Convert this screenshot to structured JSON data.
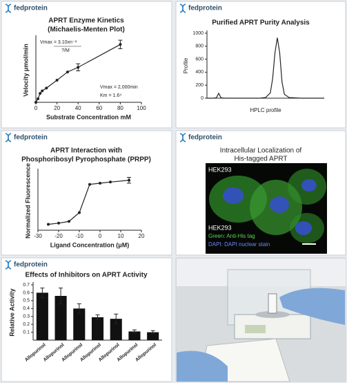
{
  "brand": "fedprotein",
  "chart_data": [
    {
      "type": "line",
      "title": [
        "APRT Enzyme Kinetics",
        "(Michaelis-Menten Plot)"
      ],
      "x": [
        0,
        2,
        4,
        6,
        10,
        20,
        30,
        40,
        80
      ],
      "values": [
        0,
        10,
        25,
        32,
        40,
        62,
        85,
        98,
        162
      ],
      "errors": [
        null,
        null,
        null,
        null,
        null,
        null,
        null,
        10,
        12
      ],
      "color": "#222222",
      "markers": true,
      "xlim": [
        0,
        100
      ],
      "xticks": [
        0,
        20,
        40,
        60,
        80,
        100
      ],
      "ylim": [
        0,
        180
      ],
      "xlabel": "Substrate Concentration mM",
      "ylabel": "Velocity μmol/min",
      "annotations": [
        "Vmax = 3.10xn⁻⁸",
        "?/M",
        "Vmax = 2,000min",
        "Km = 1.6⁴"
      ]
    },
    {
      "type": "line",
      "title": [
        "Purified APRT Purity Analysis"
      ],
      "x": [
        0,
        5,
        8,
        10,
        12,
        15,
        30,
        45,
        50,
        54,
        56,
        58,
        60,
        62,
        64,
        66,
        70,
        80,
        100
      ],
      "values": [
        0,
        0,
        5,
        75,
        5,
        0,
        0,
        0,
        10,
        80,
        300,
        700,
        930,
        700,
        250,
        60,
        10,
        0,
        0
      ],
      "color": "#222222",
      "markers": false,
      "xlim": [
        0,
        100
      ],
      "ylim": [
        0,
        1000
      ],
      "yticks": [
        0,
        200,
        400,
        600,
        800,
        1000
      ],
      "xlabel": "HPLC profile",
      "ylabel": "Profile"
    },
    {
      "type": "line",
      "title": [
        "APRT Interaction with",
        "Phosphoribosyl Pyrophosphate (PRPP)"
      ],
      "x": [
        -25,
        -20,
        -15,
        -10,
        -5,
        0,
        5,
        14
      ],
      "values": [
        0.1,
        0.12,
        0.15,
        0.3,
        0.78,
        0.8,
        0.82,
        0.85
      ],
      "errors": [
        null,
        null,
        null,
        null,
        null,
        null,
        null,
        0.05
      ],
      "color": "#222222",
      "markers": true,
      "xlim": [
        -30,
        20
      ],
      "xticks": [
        -30,
        -20,
        -10,
        0,
        10,
        20
      ],
      "ylim": [
        0,
        1
      ],
      "xlabel": "Ligand Concentration (μM)",
      "ylabel": "Normalized Fluorescence"
    },
    {
      "type": "bar",
      "title": [
        "Effects of Inhibitors on APRT Activity"
      ],
      "categories": [
        "Allopurinol",
        "Allopurinol",
        "Allopurinol",
        "Allopurinol",
        "Allopurinol",
        "Allopurinol",
        "Allopurinol"
      ],
      "values": [
        0.6,
        0.56,
        0.4,
        0.29,
        0.27,
        0.11,
        0.1
      ],
      "errors": [
        0.06,
        0.1,
        0.06,
        0.03,
        0.06,
        0.02,
        0.02
      ],
      "color": "#111111",
      "ylim": [
        0,
        0.7
      ],
      "yticks": [
        0.1,
        0.2,
        0.3,
        0.4,
        0.5,
        0.6,
        0.7
      ],
      "ylabel": "Relative Activity"
    }
  ],
  "microscopy": {
    "title": [
      "Intracellular Localization of",
      "His-tagged APRT"
    ],
    "cell_line_top": "HEK293",
    "cell_line": "HEK293",
    "legend": [
      "Green: Anti-His tag",
      "DAPI: DAPI nuclear stain"
    ]
  }
}
